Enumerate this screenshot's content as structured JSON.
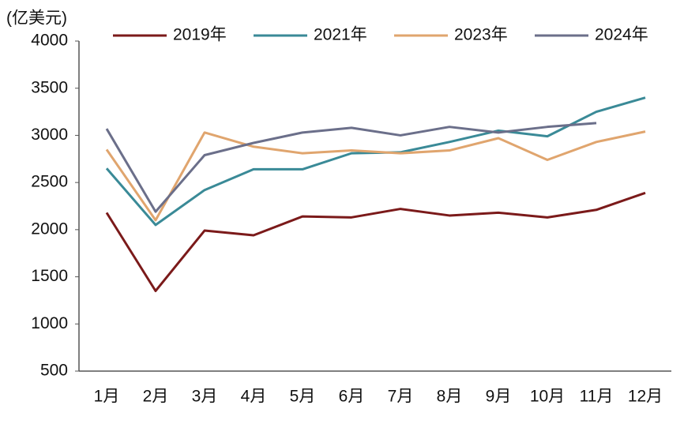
{
  "chart_data": {
    "type": "line",
    "y_label": "(亿美元)",
    "categories": [
      "1月",
      "2月",
      "3月",
      "4月",
      "5月",
      "6月",
      "7月",
      "8月",
      "9月",
      "10月",
      "11月",
      "12月"
    ],
    "series": [
      {
        "name": "2019年",
        "color": "#7b1a1a",
        "values": [
          2180,
          1350,
          1990,
          1940,
          2140,
          2130,
          2220,
          2150,
          2180,
          2130,
          2210,
          2390
        ]
      },
      {
        "name": "2021年",
        "color": "#3a8a97",
        "values": [
          2650,
          2050,
          2420,
          2640,
          2640,
          2810,
          2820,
          2930,
          3050,
          2990,
          3250,
          3400
        ]
      },
      {
        "name": "2023年",
        "color": "#e0a56e",
        "values": [
          2850,
          2100,
          3030,
          2880,
          2810,
          2840,
          2810,
          2840,
          2970,
          2740,
          2930,
          3040
        ]
      },
      {
        "name": "2024年",
        "color": "#6b6f8a",
        "values": [
          3070,
          2190,
          2790,
          2920,
          3030,
          3080,
          3000,
          3090,
          3030,
          3090,
          3130,
          null
        ]
      }
    ],
    "ylim": [
      500,
      4000
    ],
    "yticks": [
      500,
      1000,
      1500,
      2000,
      2500,
      3000,
      3500,
      4000
    ],
    "legend": "top"
  }
}
